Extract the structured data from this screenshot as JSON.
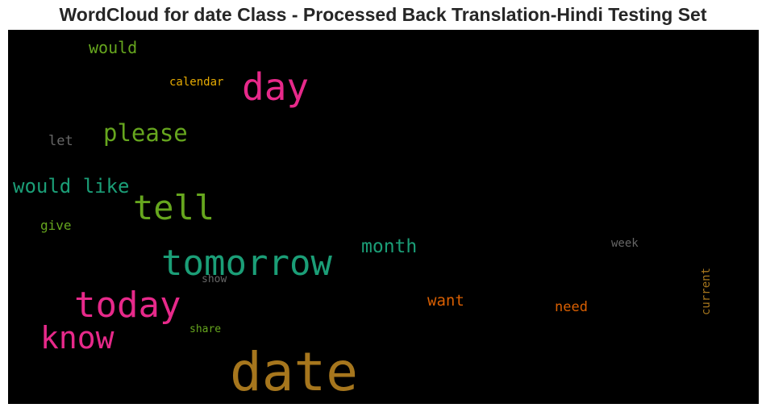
{
  "chart_data": {
    "type": "wordcloud",
    "title": "WordCloud for date Class - Processed Back Translation-Hindi Testing Set",
    "background": "#000000",
    "words": [
      {
        "text": "date",
        "color": "#a6761d",
        "orientation": "horizontal"
      },
      {
        "text": "tomorrow",
        "color": "#1b9e77",
        "orientation": "horizontal"
      },
      {
        "text": "today",
        "color": "#e7298a",
        "orientation": "horizontal"
      },
      {
        "text": "day",
        "color": "#e7298a",
        "orientation": "horizontal"
      },
      {
        "text": "tell",
        "color": "#66a61e",
        "orientation": "horizontal"
      },
      {
        "text": "know",
        "color": "#e7298a",
        "orientation": "horizontal"
      },
      {
        "text": "please",
        "color": "#66a61e",
        "orientation": "horizontal"
      },
      {
        "text": "would like",
        "color": "#1b9e77",
        "orientation": "horizontal"
      },
      {
        "text": "month",
        "color": "#1b9e77",
        "orientation": "horizontal"
      },
      {
        "text": "would",
        "color": "#66a61e",
        "orientation": "horizontal"
      },
      {
        "text": "want",
        "color": "#d95f02",
        "orientation": "horizontal"
      },
      {
        "text": "need",
        "color": "#d95f02",
        "orientation": "horizontal"
      },
      {
        "text": "let",
        "color": "#666666",
        "orientation": "horizontal"
      },
      {
        "text": "give",
        "color": "#66a61e",
        "orientation": "horizontal"
      },
      {
        "text": "calendar",
        "color": "#e6ab02",
        "orientation": "horizontal"
      },
      {
        "text": "week",
        "color": "#666666",
        "orientation": "horizontal"
      },
      {
        "text": "current",
        "color": "#a6761d",
        "orientation": "vertical"
      },
      {
        "text": "show",
        "color": "#666666",
        "orientation": "horizontal"
      },
      {
        "text": "share",
        "color": "#66a61e",
        "orientation": "horizontal"
      }
    ]
  }
}
